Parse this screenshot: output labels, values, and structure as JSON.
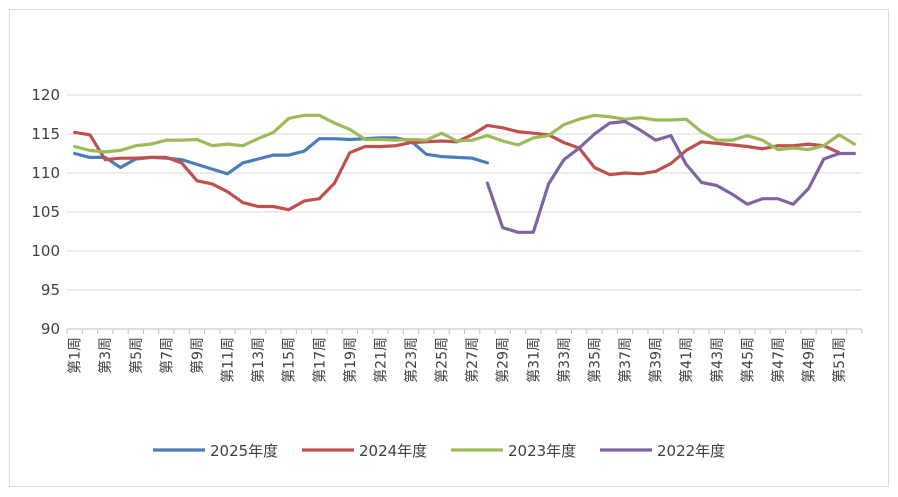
{
  "chart_data": {
    "type": "line",
    "title": "",
    "xlabel": "",
    "ylabel": "",
    "ylim": [
      90,
      120
    ],
    "yticks": [
      90,
      95,
      100,
      105,
      110,
      115,
      120
    ],
    "grid": "horizontal",
    "legend_position": "bottom",
    "x_tick_labels": [
      "第1周",
      "第3周",
      "第5周",
      "第7周",
      "第9周",
      "第11周",
      "第13周",
      "第15周",
      "第17周",
      "第19周",
      "第21周",
      "第23周",
      "第25周",
      "第27周",
      "第29周",
      "第31周",
      "第33周",
      "第35周",
      "第37周",
      "第39周",
      "第41周",
      "第43周",
      "第45周",
      "第47周",
      "第49周",
      "第51周"
    ],
    "series": [
      {
        "name": "2025年度",
        "color": "#4a7ebb",
        "values": [
          112.5,
          112.0,
          112.0,
          110.7,
          111.8,
          112.0,
          111.9,
          111.7,
          111.1,
          110.5,
          109.9,
          111.3,
          111.8,
          112.3,
          112.3,
          112.8,
          114.4,
          114.4,
          114.3,
          114.4,
          114.5,
          114.5,
          114.1,
          112.4,
          112.1,
          112.0,
          111.9,
          111.3,
          null,
          null,
          null,
          null,
          null,
          null,
          null,
          null,
          null,
          null,
          null,
          null,
          null,
          null,
          null,
          null,
          null,
          null,
          null,
          null,
          null,
          null,
          null
        ]
      },
      {
        "name": "2024年度",
        "color": "#c0504d",
        "values": [
          115.2,
          114.9,
          111.7,
          111.9,
          111.9,
          112.0,
          112.0,
          111.3,
          109.0,
          108.6,
          107.6,
          106.2,
          105.7,
          105.7,
          105.3,
          106.4,
          106.7,
          108.7,
          112.6,
          113.4,
          113.4,
          113.5,
          113.9,
          114.0,
          114.1,
          114.0,
          114.9,
          116.1,
          115.8,
          115.3,
          115.1,
          114.9,
          113.9,
          113.2,
          110.7,
          109.8,
          110.0,
          109.9,
          110.2,
          111.2,
          112.9,
          114.0,
          113.8,
          113.6,
          113.4,
          113.1,
          113.5,
          113.5,
          113.7,
          113.5,
          112.6
        ]
      },
      {
        "name": "2023年度",
        "color": "#9bbb59",
        "values": [
          113.4,
          112.9,
          112.7,
          112.9,
          113.5,
          113.7,
          114.2,
          114.2,
          114.3,
          113.5,
          113.7,
          113.5,
          114.4,
          115.2,
          117.0,
          117.4,
          117.4,
          116.4,
          115.6,
          114.3,
          114.3,
          114.2,
          114.3,
          114.2,
          115.1,
          114.1,
          114.2,
          114.8,
          114.1,
          113.6,
          114.5,
          114.8,
          116.2,
          116.9,
          117.4,
          117.2,
          116.9,
          117.1,
          116.8,
          116.8,
          116.9,
          115.3,
          114.2,
          114.2,
          114.8,
          114.2,
          113.0,
          113.2,
          113.0,
          113.5,
          114.9,
          113.7
        ]
      },
      {
        "name": "2022年度",
        "color": "#8064a2",
        "values": [
          null,
          null,
          null,
          null,
          null,
          null,
          null,
          null,
          null,
          null,
          null,
          null,
          null,
          null,
          null,
          null,
          null,
          null,
          null,
          null,
          null,
          null,
          null,
          null,
          null,
          null,
          null,
          108.7,
          103.0,
          102.4,
          102.4,
          108.6,
          111.7,
          113.2,
          115.0,
          116.4,
          116.6,
          115.5,
          114.2,
          114.8,
          111.1,
          108.8,
          108.4,
          107.3,
          106.0,
          106.7,
          106.7,
          106.0,
          108.0,
          111.8,
          112.5,
          112.5
        ]
      }
    ]
  }
}
